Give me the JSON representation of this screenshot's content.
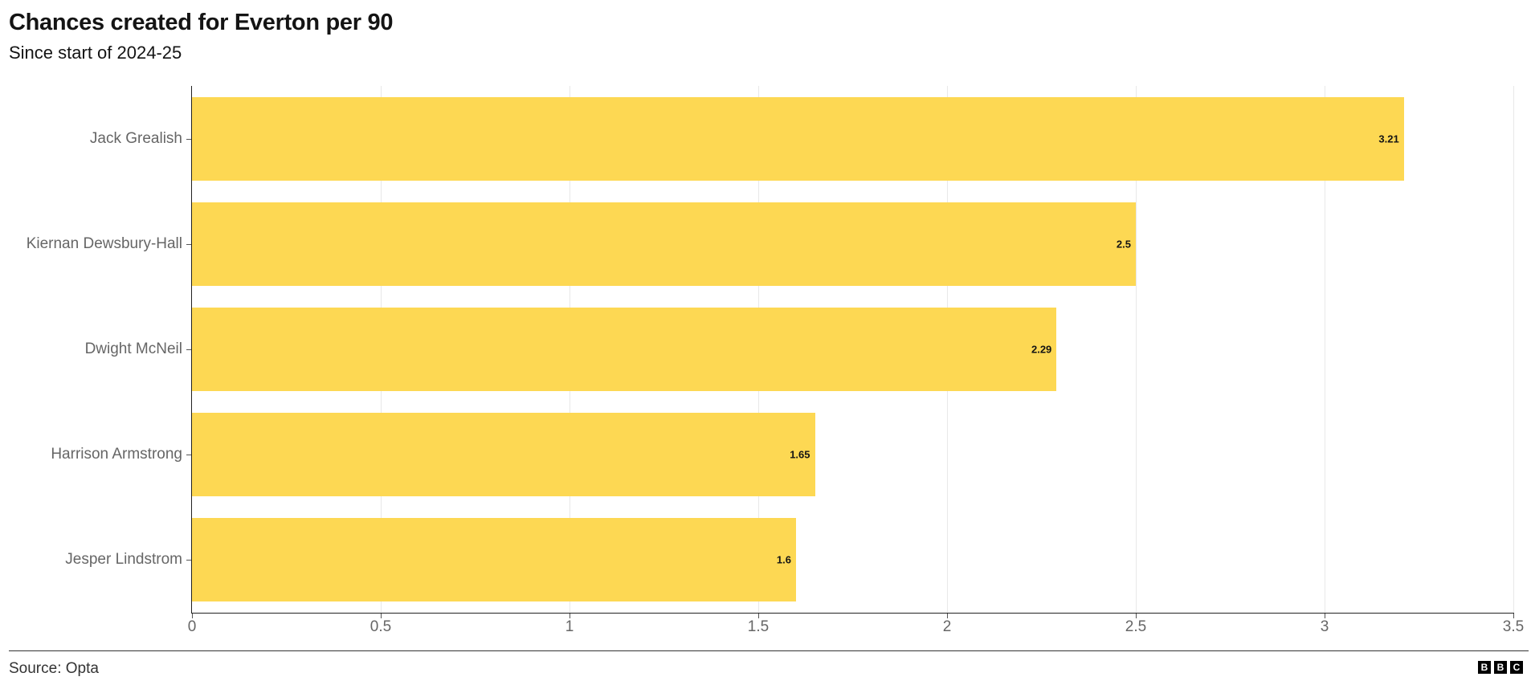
{
  "header": {
    "title": "Chances created for Everton per 90",
    "subtitle": "Since start of 2024-25"
  },
  "footer": {
    "source": "Source: Opta",
    "logo_letters": [
      "B",
      "B",
      "C"
    ]
  },
  "colors": {
    "bar": "#FDD853",
    "axis_text": "#666666",
    "title_text": "#141414"
  },
  "axis": {
    "x_ticks": [
      "0",
      "0.5",
      "1",
      "1.5",
      "2",
      "2.5",
      "3",
      "3.5"
    ]
  },
  "bars": [
    {
      "label": "Jack Grealish",
      "value_text": "3.21"
    },
    {
      "label": "Kiernan Dewsbury-Hall",
      "value_text": "2.5"
    },
    {
      "label": "Dwight McNeil",
      "value_text": "2.29"
    },
    {
      "label": "Harrison Armstrong",
      "value_text": "1.65"
    },
    {
      "label": "Jesper Lindstrom",
      "value_text": "1.6"
    }
  ],
  "chart_data": {
    "type": "bar",
    "orientation": "horizontal",
    "title": "Chances created for Everton per 90",
    "subtitle": "Since start of 2024-25",
    "categories": [
      "Jack Grealish",
      "Kiernan Dewsbury-Hall",
      "Dwight McNeil",
      "Harrison Armstrong",
      "Jesper Lindstrom"
    ],
    "values": [
      3.21,
      2.5,
      2.29,
      1.65,
      1.6
    ],
    "xlabel": "",
    "ylabel": "",
    "xlim": [
      0,
      3.5
    ],
    "x_ticks": [
      0,
      0.5,
      1,
      1.5,
      2,
      2.5,
      3,
      3.5
    ],
    "grid": "vertical",
    "legend": "none",
    "data_labels": true,
    "source": "Source: Opta",
    "bar_color": "#FDD853"
  }
}
